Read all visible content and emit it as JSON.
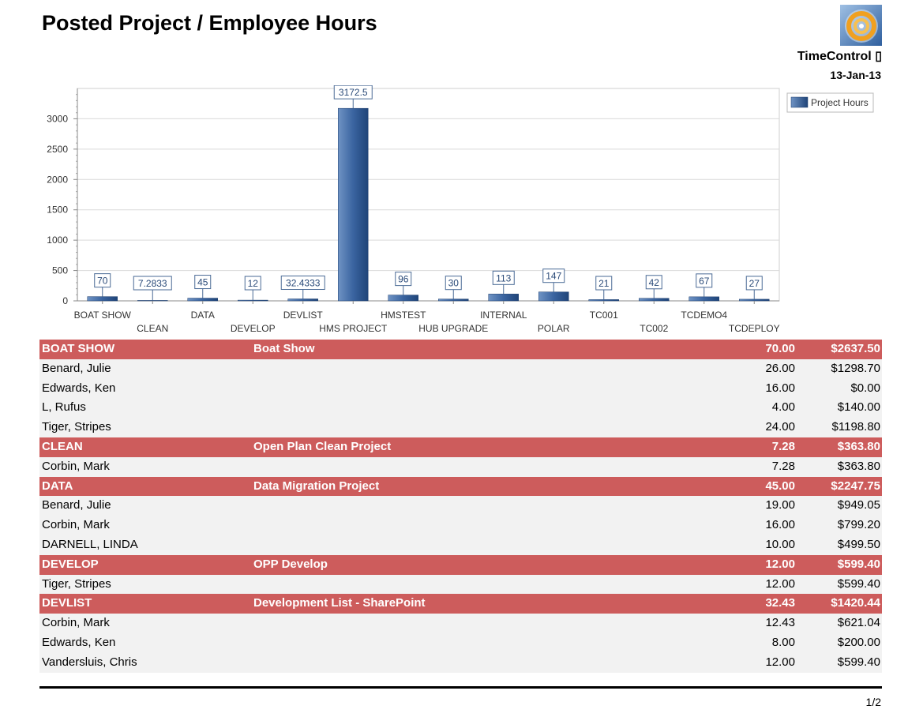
{
  "report": {
    "title": "Posted Project / Employee Hours",
    "company": "TimeControl ▯",
    "date": "13-Jan-13",
    "page_number": "1/2"
  },
  "colors": {
    "group_row": "#cd5c5c",
    "employee_row": "#f2f2f2",
    "bar": "#3a64a0"
  },
  "chart_data": {
    "type": "bar",
    "categories": [
      "BOAT SHOW",
      "CLEAN",
      "DATA",
      "DEVELOP",
      "DEVLIST",
      "HMS PROJECT",
      "HMSTEST",
      "HUB UPGRADE",
      "INTERNAL",
      "POLAR",
      "TC001",
      "TC002",
      "TCDEMO4",
      "TCDEPLOY"
    ],
    "series": [
      {
        "name": "Project Hours",
        "values": [
          70,
          7.2833,
          45,
          12,
          32.4333,
          3172.5,
          96,
          30,
          113,
          147,
          21,
          42,
          67,
          27
        ]
      }
    ],
    "data_labels": [
      "70",
      "7.2833",
      "45",
      "12",
      "32.4333",
      "3172.5",
      "96",
      "30",
      "113",
      "147",
      "21",
      "42",
      "67",
      "27"
    ],
    "ylim": [
      0,
      3500
    ],
    "yticks": [
      "0",
      "500",
      "1000",
      "1500",
      "2000",
      "2500",
      "3000"
    ],
    "grid": true,
    "legend": "top-right"
  },
  "groups": [
    {
      "code": "BOAT SHOW",
      "description": "Boat Show",
      "hours": "70.00",
      "amount": "$2637.50",
      "employees": [
        {
          "name": "Benard, Julie",
          "hours": "26.00",
          "amount": "$1298.70"
        },
        {
          "name": "Edwards, Ken",
          "hours": "16.00",
          "amount": "$0.00"
        },
        {
          "name": "L, Rufus",
          "hours": "4.00",
          "amount": "$140.00"
        },
        {
          "name": "Tiger, Stripes",
          "hours": "24.00",
          "amount": "$1198.80"
        }
      ]
    },
    {
      "code": "CLEAN",
      "description": "Open Plan Clean Project",
      "hours": "7.28",
      "amount": "$363.80",
      "employees": [
        {
          "name": "Corbin, Mark",
          "hours": "7.28",
          "amount": "$363.80"
        }
      ]
    },
    {
      "code": "DATA",
      "description": "Data Migration Project",
      "hours": "45.00",
      "amount": "$2247.75",
      "employees": [
        {
          "name": "Benard, Julie",
          "hours": "19.00",
          "amount": "$949.05"
        },
        {
          "name": "Corbin, Mark",
          "hours": "16.00",
          "amount": "$799.20"
        },
        {
          "name": "DARNELL, LINDA",
          "hours": "10.00",
          "amount": "$499.50"
        }
      ]
    },
    {
      "code": "DEVELOP",
      "description": "OPP Develop",
      "hours": "12.00",
      "amount": "$599.40",
      "employees": [
        {
          "name": "Tiger, Stripes",
          "hours": "12.00",
          "amount": "$599.40"
        }
      ]
    },
    {
      "code": "DEVLIST",
      "description": "Development List - SharePoint",
      "hours": "32.43",
      "amount": "$1420.44",
      "employees": [
        {
          "name": "Corbin, Mark",
          "hours": "12.43",
          "amount": "$621.04"
        },
        {
          "name": "Edwards, Ken",
          "hours": "8.00",
          "amount": "$200.00"
        },
        {
          "name": "Vandersluis, Chris",
          "hours": "12.00",
          "amount": "$599.40"
        }
      ]
    }
  ]
}
